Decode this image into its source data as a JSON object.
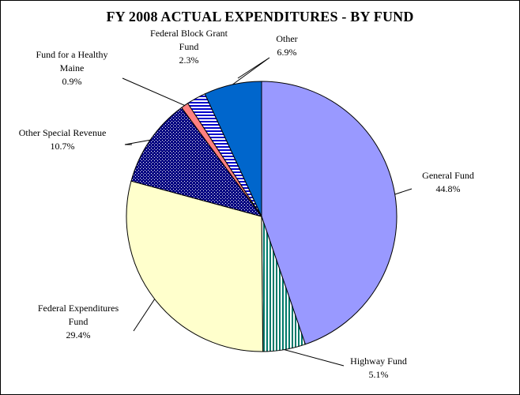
{
  "chart_data": {
    "type": "pie",
    "title": "FY 2008 ACTUAL EXPENDITURES - BY FUND",
    "slices": [
      {
        "name": "General Fund",
        "percent_label": "44.8%",
        "value": 44.8,
        "color": "#9999ff",
        "pattern": "solid"
      },
      {
        "name": "Highway Fund",
        "percent_label": "5.1%",
        "value": 5.1,
        "color": "#007a6a",
        "pattern": "vertical-stripes"
      },
      {
        "name": "Federal Expenditures Fund",
        "percent_label": "29.4%",
        "value": 29.4,
        "color": "#ffffcc",
        "pattern": "solid"
      },
      {
        "name": "Other Special Revenue",
        "percent_label": "10.7%",
        "value": 10.7,
        "color": "#000080",
        "pattern": "checker"
      },
      {
        "name": "Fund for a Healthy Maine",
        "percent_label": "0.9%",
        "value": 0.9,
        "color": "#ff8080",
        "pattern": "solid"
      },
      {
        "name": "Federal Block Grant Fund",
        "percent_label": "2.3%",
        "value": 2.3,
        "color": "#0000cc",
        "pattern": "horizontal-stripes"
      },
      {
        "name": "Other",
        "percent_label": "6.9%",
        "value": 6.9,
        "color": "#0066cc",
        "pattern": "solid"
      }
    ],
    "label_lines": {
      "General Fund": [
        "General Fund",
        "44.8%"
      ],
      "Highway Fund": [
        "Highway Fund",
        "5.1%"
      ],
      "Federal Expenditures Fund": [
        "Federal Expenditures",
        "Fund",
        "29.4%"
      ],
      "Other Special Revenue": [
        "Other Special Revenue",
        "10.7%"
      ],
      "Fund for a Healthy Maine": [
        "Fund for a Healthy",
        "Maine",
        "0.9%"
      ],
      "Federal Block Grant Fund": [
        "Federal Block Grant",
        "Fund",
        "2.3%"
      ],
      "Other": [
        "Other",
        "6.9%"
      ]
    }
  }
}
